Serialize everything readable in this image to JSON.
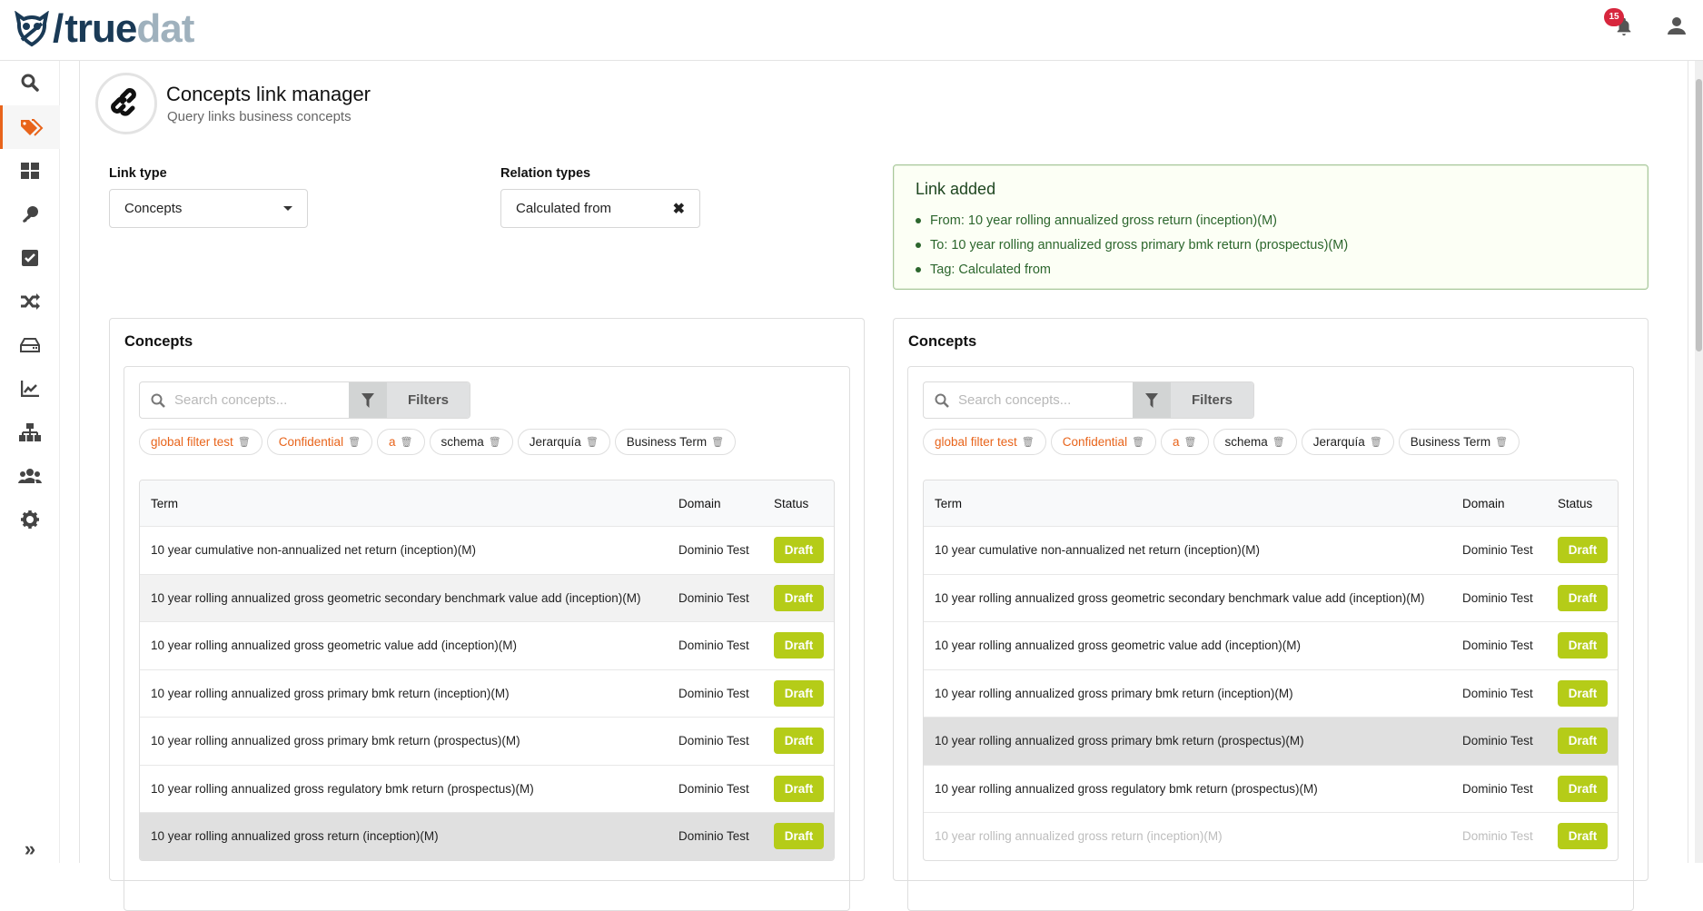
{
  "header": {
    "logo_text_a": "true",
    "logo_text_b": "dat",
    "notifications_count": "15"
  },
  "sidebar": {
    "items": [
      "search",
      "concepts",
      "dashboard",
      "key",
      "tasks",
      "lineage",
      "storage",
      "charts",
      "structures",
      "groups",
      "settings"
    ],
    "active": "concepts",
    "expand_label": "»"
  },
  "page": {
    "title": "Concepts link manager",
    "subtitle": "Query links business concepts"
  },
  "form": {
    "link_type_label": "Link type",
    "link_type_value": "Concepts",
    "relation_types_label": "Relation types",
    "relation_types_value": "Calculated from"
  },
  "message": {
    "title": "Link added",
    "items": [
      "From: 10 year rolling annualized gross return (inception)(M)",
      "To: 10 year rolling annualized gross primary bmk return (prospectus)(M)",
      "Tag: Calculated from"
    ]
  },
  "colors": {
    "accent": "#e8641b",
    "draft": "#b5cc18",
    "success_border": "#a8c89a"
  },
  "panels": [
    {
      "title": "Concepts",
      "search_placeholder": "Search concepts...",
      "filters_label": "Filters",
      "chips": [
        "global filter test",
        "Confidential",
        "a",
        "schema",
        "Jerarquía",
        "Business Term"
      ],
      "columns": [
        "Term",
        "Domain",
        "Status"
      ],
      "rows": [
        {
          "term": "10 year cumulative non-annualized net return (inception)(M)",
          "domain": "Dominio Test",
          "status": "Draft",
          "state": ""
        },
        {
          "term": "10 year rolling annualized gross geometric secondary benchmark value add (inception)(M)",
          "domain": "Dominio Test",
          "status": "Draft",
          "state": "hover"
        },
        {
          "term": "10 year rolling annualized gross geometric value add (inception)(M)",
          "domain": "Dominio Test",
          "status": "Draft",
          "state": ""
        },
        {
          "term": "10 year rolling annualized gross primary bmk return (inception)(M)",
          "domain": "Dominio Test",
          "status": "Draft",
          "state": ""
        },
        {
          "term": "10 year rolling annualized gross primary bmk return (prospectus)(M)",
          "domain": "Dominio Test",
          "status": "Draft",
          "state": ""
        },
        {
          "term": "10 year rolling annualized gross regulatory bmk return (prospectus)(M)",
          "domain": "Dominio Test",
          "status": "Draft",
          "state": ""
        },
        {
          "term": "10 year rolling annualized gross return (inception)(M)",
          "domain": "Dominio Test",
          "status": "Draft",
          "state": "sel"
        }
      ]
    },
    {
      "title": "Concepts",
      "search_placeholder": "Search concepts...",
      "filters_label": "Filters",
      "chips": [
        "global filter test",
        "Confidential",
        "a",
        "schema",
        "Jerarquía",
        "Business Term"
      ],
      "columns": [
        "Term",
        "Domain",
        "Status"
      ],
      "rows": [
        {
          "term": "10 year cumulative non-annualized net return (inception)(M)",
          "domain": "Dominio Test",
          "status": "Draft",
          "state": ""
        },
        {
          "term": "10 year rolling annualized gross geometric secondary benchmark value add (inception)(M)",
          "domain": "Dominio Test",
          "status": "Draft",
          "state": ""
        },
        {
          "term": "10 year rolling annualized gross geometric value add (inception)(M)",
          "domain": "Dominio Test",
          "status": "Draft",
          "state": ""
        },
        {
          "term": "10 year rolling annualized gross primary bmk return (inception)(M)",
          "domain": "Dominio Test",
          "status": "Draft",
          "state": ""
        },
        {
          "term": "10 year rolling annualized gross primary bmk return (prospectus)(M)",
          "domain": "Dominio Test",
          "status": "Draft",
          "state": "sel"
        },
        {
          "term": "10 year rolling annualized gross regulatory bmk return (prospectus)(M)",
          "domain": "Dominio Test",
          "status": "Draft",
          "state": ""
        },
        {
          "term": "10 year rolling annualized gross return (inception)(M)",
          "domain": "Dominio Test",
          "status": "Draft",
          "state": "dis"
        }
      ]
    }
  ]
}
